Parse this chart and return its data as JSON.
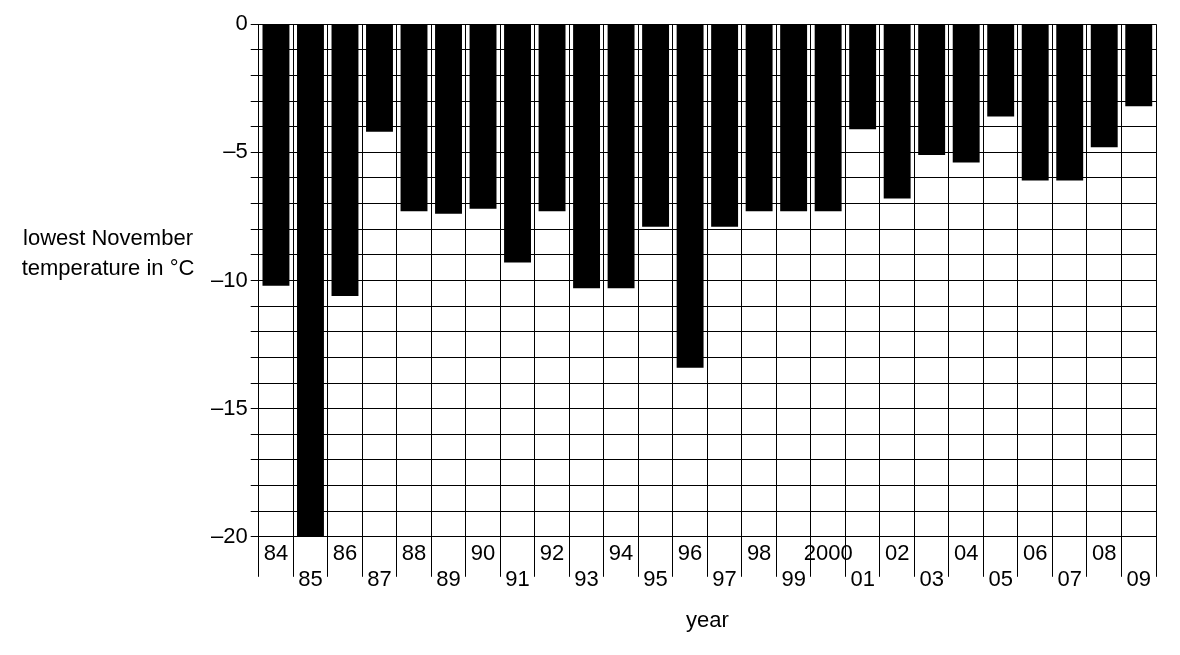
{
  "chart_data": {
    "type": "bar",
    "xlabel": "year",
    "ylabel": "lowest November temperature in °C",
    "categories": [
      "84",
      "85",
      "86",
      "87",
      "88",
      "89",
      "90",
      "91",
      "92",
      "93",
      "94",
      "95",
      "96",
      "97",
      "98",
      "99",
      "2000",
      "01",
      "02",
      "03",
      "04",
      "05",
      "06",
      "07",
      "08",
      "09"
    ],
    "values": [
      -10.2,
      -20,
      -10.6,
      -4.2,
      -7.3,
      -7.4,
      -7.2,
      -9.3,
      -7.3,
      -10.3,
      -10.3,
      -7.9,
      -13.4,
      -7.9,
      -7.3,
      -7.3,
      -7.3,
      -4.1,
      -6.8,
      -5.1,
      -5.4,
      -3.6,
      -6.1,
      -6.1,
      -4.8,
      -3.2
    ],
    "color": "#000000",
    "ylim": [
      -20,
      0
    ],
    "yticks": [
      {
        "value": -20,
        "label": "–20"
      },
      {
        "value": -19,
        "label": null
      },
      {
        "value": -18,
        "label": null
      },
      {
        "value": -17,
        "label": null
      },
      {
        "value": -16,
        "label": null
      },
      {
        "value": -15,
        "label": "–15"
      },
      {
        "value": -14,
        "label": null
      },
      {
        "value": -13,
        "label": null
      },
      {
        "value": -12,
        "label": null
      },
      {
        "value": -11,
        "label": null
      },
      {
        "value": -10,
        "label": "–10"
      },
      {
        "value": -9,
        "label": null
      },
      {
        "value": -8,
        "label": null
      },
      {
        "value": -7,
        "label": null
      },
      {
        "value": -6,
        "label": null
      },
      {
        "value": -5,
        "label": "–5"
      },
      {
        "value": -4,
        "label": null
      },
      {
        "value": -3,
        "label": null
      },
      {
        "value": -2,
        "label": null
      },
      {
        "value": -1,
        "label": null
      },
      {
        "value": 0,
        "label": "0"
      }
    ],
    "grid": true
  }
}
